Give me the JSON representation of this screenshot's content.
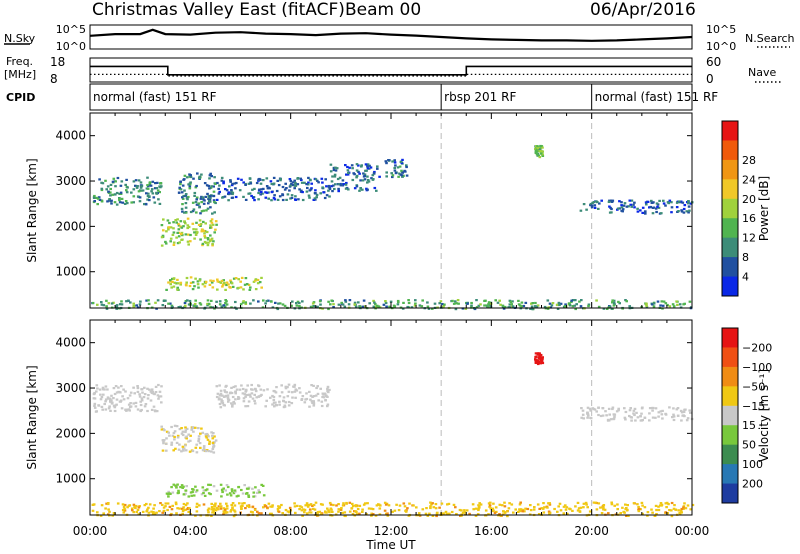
{
  "header": {
    "title": "Christmas Valley East (fitACF)",
    "beam": "Beam 00",
    "date": "06/Apr/2016"
  },
  "side_labels": {
    "nsky": "N.Sky",
    "nsearch": "N.Search",
    "freq": "Freq.",
    "freq_unit": "[MHz]",
    "nave": "Nave",
    "cpid": "CPID"
  },
  "chart_data": [
    {
      "type": "line",
      "panel": "noise",
      "left_ticks": [
        "10^5",
        "10^0"
      ],
      "right_ticks": [
        "10^5",
        "10^0"
      ],
      "series": [
        {
          "name": "N.Sky",
          "x": [
            0,
            1,
            2,
            2.5,
            3,
            4,
            5,
            6,
            7,
            8,
            9,
            10,
            11,
            12,
            13,
            14,
            15,
            16,
            17,
            18,
            19,
            20,
            21,
            22,
            23,
            24
          ],
          "y": [
            0.55,
            0.62,
            0.62,
            0.8,
            0.62,
            0.6,
            0.68,
            0.7,
            0.64,
            0.62,
            0.58,
            0.64,
            0.66,
            0.6,
            0.56,
            0.5,
            0.44,
            0.4,
            0.38,
            0.36,
            0.36,
            0.34,
            0.36,
            0.4,
            0.44,
            0.5
          ]
        }
      ]
    },
    {
      "type": "line",
      "panel": "freq_nave",
      "left_ticks": [
        "18",
        "8"
      ],
      "right_ticks": [
        "60",
        "0"
      ],
      "series": [
        {
          "name": "Freq.",
          "x": [
            0,
            3.1,
            3.1,
            15.0,
            15.0,
            24
          ],
          "y": [
            14.5,
            14.5,
            11.0,
            11.0,
            14.5,
            14.5
          ]
        },
        {
          "name": "Nave",
          "x": [
            0,
            3.1,
            3.1,
            15.0,
            15.0,
            24
          ],
          "y": [
            19,
            19,
            15,
            15,
            19,
            19
          ]
        }
      ]
    },
    {
      "type": "table",
      "panel": "cpid",
      "segments": [
        {
          "label": "normal (fast) 151 RF",
          "start": 0,
          "end": 14.0
        },
        {
          "label": "rbsp 201 RF",
          "start": 14.0,
          "end": 20.0
        },
        {
          "label": "normal (fast) 151 RF",
          "start": 20.0,
          "end": 24
        }
      ]
    },
    {
      "type": "heatmap",
      "panel": "power",
      "ylabel": "Slant Range [km]",
      "yticks": [
        "1000",
        "2000",
        "3000",
        "4000"
      ],
      "ylim": [
        200,
        4500
      ],
      "colorbar_label": "Power [dB]",
      "colorbar_ticks": [
        "4",
        "8",
        "12",
        "16",
        "20",
        "24",
        "28"
      ],
      "colorbar_colors": [
        "#0a28e6",
        "#2050a0",
        "#3c8c78",
        "#50b450",
        "#a0d23c",
        "#f0c828",
        "#f09614",
        "#f05a0a",
        "#e61414"
      ],
      "regions": [
        {
          "x0": 0.1,
          "x1": 2.8,
          "r0": 2500,
          "r1": 3100,
          "v": 10
        },
        {
          "x0": 2.8,
          "x1": 5.0,
          "r0": 1600,
          "r1": 2200,
          "v": 17
        },
        {
          "x0": 3.0,
          "x1": 6.9,
          "r0": 620,
          "r1": 900,
          "v": 19
        },
        {
          "x0": 3.5,
          "x1": 5.0,
          "r0": 2300,
          "r1": 3200,
          "v": 9
        },
        {
          "x0": 5.0,
          "x1": 9.5,
          "r0": 2600,
          "r1": 3100,
          "v": 7
        },
        {
          "x0": 9.5,
          "x1": 11.5,
          "r0": 2800,
          "r1": 3400,
          "v": 7
        },
        {
          "x0": 11.7,
          "x1": 12.6,
          "r0": 3100,
          "r1": 3500,
          "v": 8
        },
        {
          "x0": 17.7,
          "x1": 18.0,
          "r0": 3550,
          "r1": 3800,
          "v": 15
        },
        {
          "x0": 19.5,
          "x1": 24.0,
          "r0": 2300,
          "r1": 2600,
          "v": 7
        },
        {
          "x0": 0.0,
          "x1": 24.0,
          "r0": 200,
          "r1": 400,
          "v": 12
        }
      ]
    },
    {
      "type": "heatmap",
      "panel": "velocity",
      "xlabel": "Time UT",
      "ylabel": "Slant Range [km]",
      "xticks": [
        "00:00",
        "04:00",
        "08:00",
        "12:00",
        "16:00",
        "20:00",
        "00:00"
      ],
      "yticks": [
        "1000",
        "2000",
        "3000",
        "4000"
      ],
      "ylim": [
        200,
        4500
      ],
      "colorbar_label": "Velocity [m s⁻¹]",
      "colorbar_ticks": [
        "200",
        "100",
        "50",
        "15",
        "−15",
        "−50",
        "−100",
        "−200"
      ],
      "colorbar_colors": [
        "#1e3ca0",
        "#2878b4",
        "#3c8c50",
        "#78c83c",
        "#c8c8c8",
        "#f0c814",
        "#f08c14",
        "#f05014",
        "#e61414"
      ],
      "regions": [
        {
          "x0": 0.1,
          "x1": 2.8,
          "r0": 2500,
          "r1": 3100,
          "v": 0
        },
        {
          "x0": 2.8,
          "x1": 5.0,
          "r0": 1600,
          "r1": 2200,
          "v": -10
        },
        {
          "x0": 3.0,
          "x1": 6.9,
          "r0": 620,
          "r1": 900,
          "v": 20
        },
        {
          "x0": 5.0,
          "x1": 9.5,
          "r0": 2600,
          "r1": 3100,
          "v": 0
        },
        {
          "x0": 17.7,
          "x1": 18.0,
          "r0": 3550,
          "r1": 3800,
          "v": -220
        },
        {
          "x0": 19.5,
          "x1": 24.0,
          "r0": 2300,
          "r1": 2600,
          "v": 0
        },
        {
          "x0": 0.0,
          "x1": 24.0,
          "r0": 200,
          "r1": 500,
          "v": -40
        }
      ]
    }
  ]
}
